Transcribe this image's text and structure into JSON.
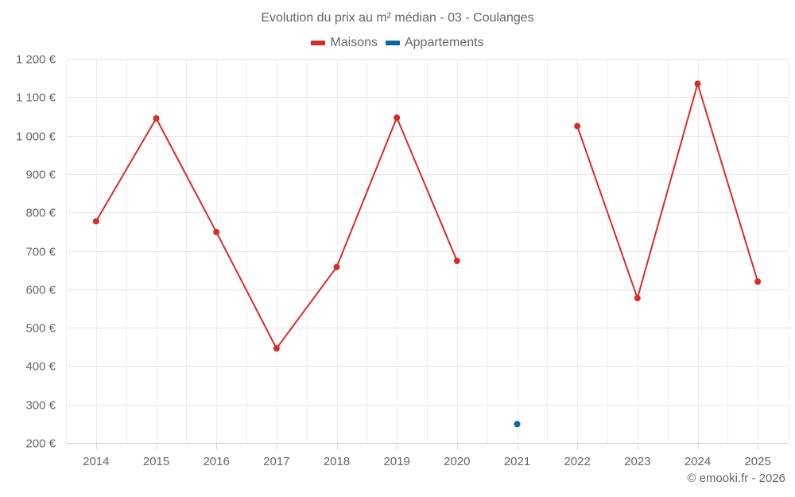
{
  "chart": {
    "title": "Evolution du prix au m² médian - 03 - Coulanges",
    "credits": "© emooki.fr - 2026",
    "legend": [
      {
        "label": "Maisons",
        "color": "#d92b2b"
      },
      {
        "label": "Appartements",
        "color": "#0a66a6"
      }
    ]
  },
  "chart_data": {
    "type": "line",
    "title": "Evolution du prix au m² médian - 03 - Coulanges",
    "xlabel": "",
    "ylabel": "",
    "categories": [
      "2014",
      "2015",
      "2016",
      "2017",
      "2018",
      "2019",
      "2020",
      "2021",
      "2022",
      "2023",
      "2024",
      "2025"
    ],
    "series": [
      {
        "name": "Maisons",
        "color": "#d92b2b",
        "values": [
          777,
          1045,
          749,
          446,
          658,
          1047,
          674,
          null,
          1025,
          577,
          1135,
          620
        ]
      },
      {
        "name": "Appartements",
        "color": "#0a66a6",
        "values": [
          null,
          null,
          null,
          null,
          null,
          null,
          null,
          249,
          null,
          null,
          null,
          null
        ]
      }
    ],
    "ylim": [
      200,
      1200
    ],
    "y_ticks": [
      200,
      300,
      400,
      500,
      600,
      700,
      800,
      900,
      1000,
      1100,
      1200
    ],
    "y_tick_labels": [
      "200 €",
      "300 €",
      "400 €",
      "500 €",
      "600 €",
      "700 €",
      "800 €",
      "900 €",
      "1 000 €",
      "1 100 €",
      "1 200 €"
    ],
    "grid": true,
    "legend_position": "top"
  }
}
